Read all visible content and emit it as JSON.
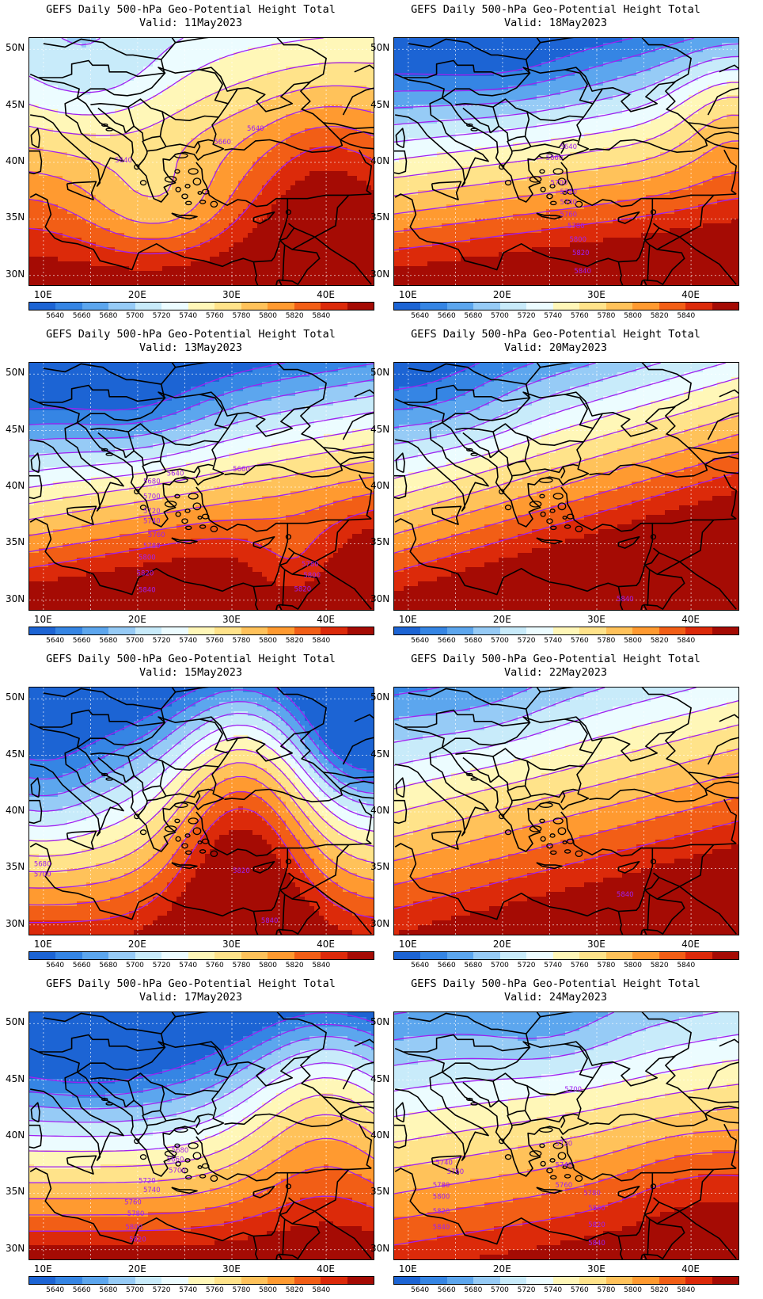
{
  "title_line1": "GEFS Daily 500-hPa Geo-Potential Height Total",
  "lat_labels": [
    "50N",
    "45N",
    "40N",
    "35N",
    "30N"
  ],
  "lon_labels": [
    "10E",
    "20E",
    "30E",
    "40E"
  ],
  "colorbar": {
    "levels": [
      "5640",
      "5660",
      "5680",
      "5700",
      "5720",
      "5740",
      "5760",
      "5780",
      "5800",
      "5820",
      "5840"
    ],
    "colors": [
      "#1c64d4",
      "#3585e4",
      "#5ca6ee",
      "#96cbf6",
      "#c8ebfa",
      "#ecfcff",
      "#fff7b8",
      "#ffe38a",
      "#ffc25a",
      "#ff9a30",
      "#f25e16",
      "#dc2a0a",
      "#a50b04"
    ]
  },
  "contour_color": "#a020f0",
  "panels": [
    {
      "valid": "Valid: 11May2023",
      "date": "2023-05-11",
      "labels": [
        "5640",
        "5660",
        "5640"
      ]
    },
    {
      "valid": "Valid: 18May2023",
      "date": "2023-05-18",
      "labels": [
        "5640",
        "5660",
        "5700",
        "5720",
        "5740",
        "5760",
        "5780",
        "5800",
        "5820",
        "5840"
      ]
    },
    {
      "valid": "Valid: 13May2023",
      "date": "2023-05-13",
      "labels": [
        "5640",
        "5680",
        "5660",
        "5700",
        "5720",
        "5740",
        "5760",
        "5780",
        "5800",
        "5820",
        "5840",
        "5780",
        "5800",
        "5820"
      ]
    },
    {
      "valid": "Valid: 20May2023",
      "date": "2023-05-20",
      "labels": [
        "5840"
      ]
    },
    {
      "valid": "Valid: 15May2023",
      "date": "2023-05-15",
      "labels": [
        "5680",
        "5700",
        "5820",
        "5840"
      ]
    },
    {
      "valid": "Valid: 22May2023",
      "date": "2023-05-22",
      "labels": [
        "5840"
      ]
    },
    {
      "valid": "Valid: 17May2023",
      "date": "2023-05-17",
      "labels": [
        "5680",
        "5660",
        "5700",
        "5720",
        "5740",
        "5760",
        "5780",
        "5800",
        "5820"
      ]
    },
    {
      "valid": "Valid: 24May2023",
      "date": "2023-05-24",
      "labels": [
        "5700",
        "5720",
        "5740",
        "5740",
        "5760",
        "5760",
        "5780",
        "5780",
        "5800",
        "5800",
        "5820",
        "5820",
        "5840",
        "5840"
      ]
    }
  ]
}
